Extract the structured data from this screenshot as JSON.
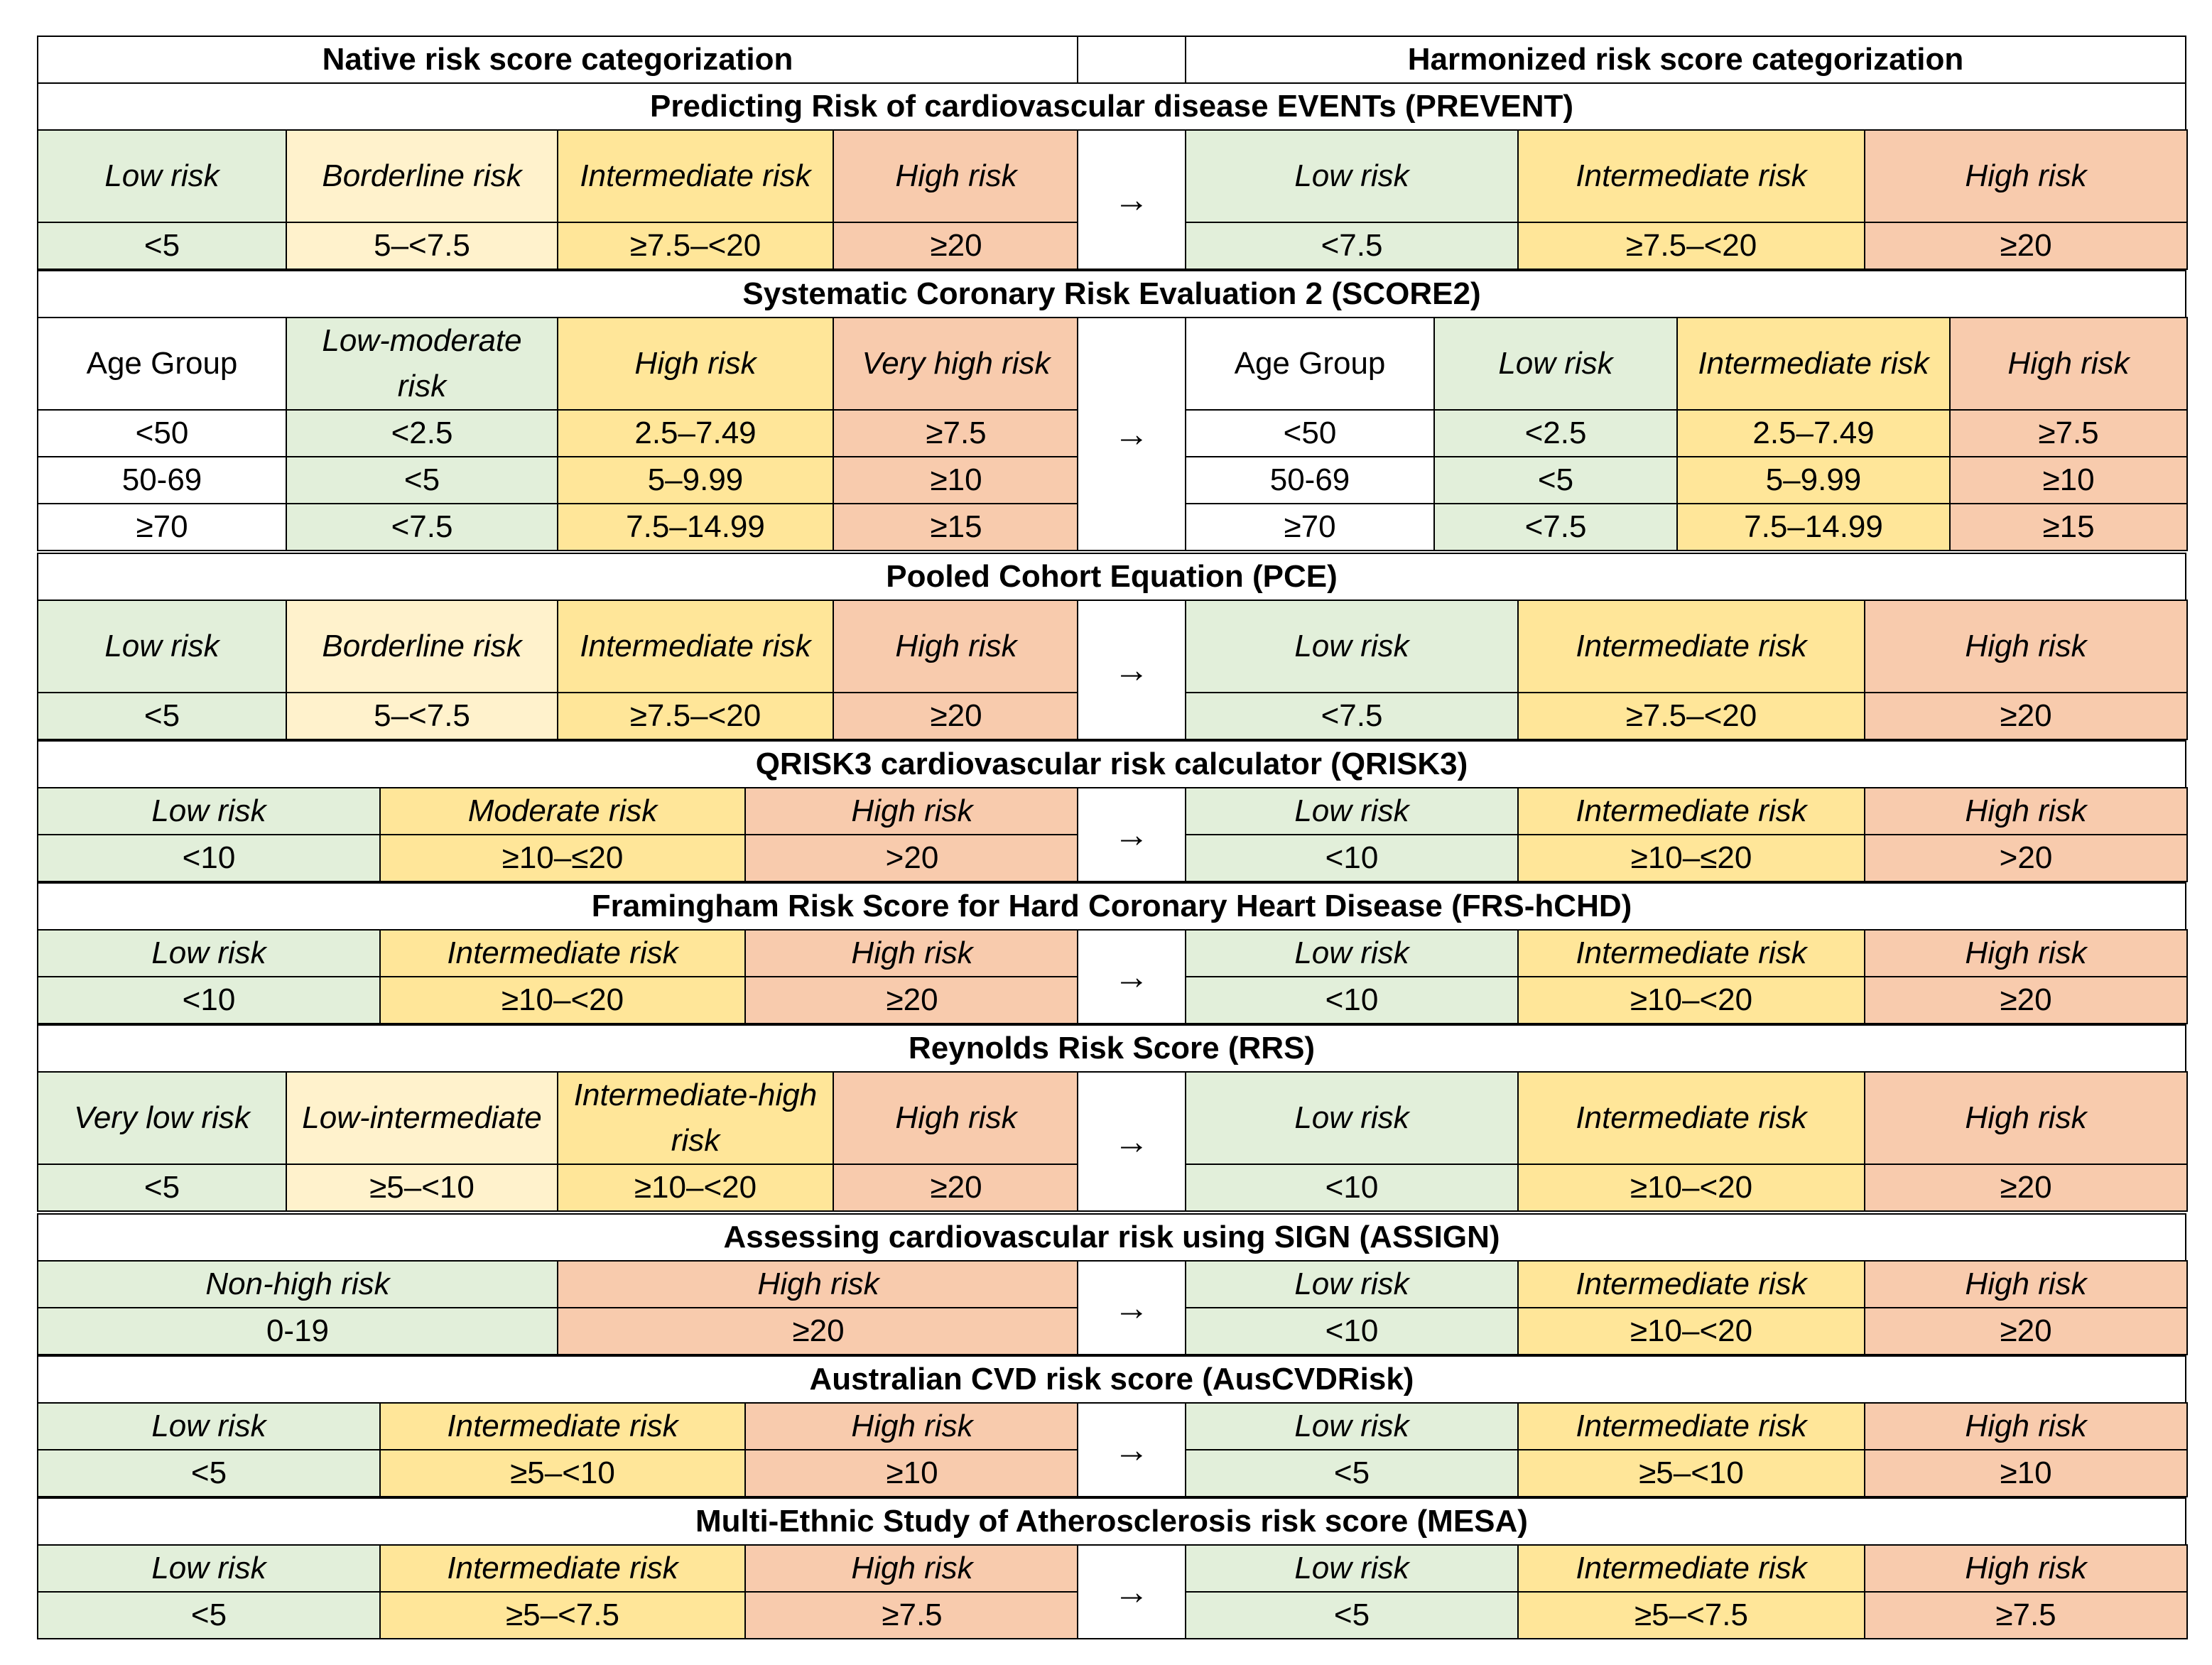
{
  "table": {
    "native_header": "Native risk score categorization",
    "harmonized_header": "Harmonized risk score categorization",
    "arrow": "→",
    "sections": [
      {
        "title": "Predicting Risk of cardiovascular disease EVENTs (PREVENT)",
        "native": {
          "labels": [
            "Low risk",
            "Borderline risk",
            "Intermediate risk",
            "High risk"
          ],
          "rows": [
            [
              "<5",
              "5–<7.5",
              "≥7.5–<20",
              "≥20"
            ]
          ]
        },
        "harmonized": {
          "labels": [
            "Low risk",
            "Intermediate risk",
            "High risk"
          ],
          "rows": [
            [
              "<7.5",
              "≥7.5–<20",
              "≥20"
            ]
          ]
        }
      },
      {
        "title": "Systematic Coronary Risk Evaluation 2 (SCORE2)",
        "native": {
          "labels": [
            "Age Group",
            "Low-moderate risk",
            "High risk",
            "Very high risk"
          ],
          "rows": [
            [
              "<50",
              "<2.5",
              "2.5–7.49",
              "≥7.5"
            ],
            [
              "50-69",
              "<5",
              "5–9.99",
              "≥10"
            ],
            [
              "≥70",
              "<7.5",
              "7.5–14.99",
              "≥15"
            ]
          ]
        },
        "harmonized": {
          "labels": [
            "Age Group",
            "Low risk",
            "Intermediate risk",
            "High risk"
          ],
          "rows": [
            [
              "<50",
              "<2.5",
              "2.5–7.49",
              "≥7.5"
            ],
            [
              "50-69",
              "<5",
              "5–9.99",
              "≥10"
            ],
            [
              "≥70",
              "<7.5",
              "7.5–14.99",
              "≥15"
            ]
          ]
        }
      },
      {
        "title": "Pooled Cohort Equation (PCE)",
        "native": {
          "labels": [
            "Low risk",
            "Borderline risk",
            "Intermediate risk",
            "High risk"
          ],
          "rows": [
            [
              "<5",
              "5–<7.5",
              "≥7.5–<20",
              "≥20"
            ]
          ]
        },
        "harmonized": {
          "labels": [
            "Low risk",
            "Intermediate risk",
            "High risk"
          ],
          "rows": [
            [
              "<7.5",
              "≥7.5–<20",
              "≥20"
            ]
          ]
        }
      },
      {
        "title": "QRISK3 cardiovascular risk calculator (QRISK3)",
        "native": {
          "labels": [
            "Low risk",
            "Moderate risk",
            "High risk"
          ],
          "rows": [
            [
              "<10",
              "≥10–≤20",
              ">20"
            ]
          ]
        },
        "harmonized": {
          "labels": [
            "Low risk",
            "Intermediate risk",
            "High risk"
          ],
          "rows": [
            [
              "<10",
              "≥10–≤20",
              ">20"
            ]
          ]
        }
      },
      {
        "title": "Framingham Risk Score for Hard Coronary Heart Disease (FRS-hCHD)",
        "native": {
          "labels": [
            "Low risk",
            "Intermediate risk",
            "High risk"
          ],
          "rows": [
            [
              "<10",
              "≥10–<20",
              "≥20"
            ]
          ]
        },
        "harmonized": {
          "labels": [
            "Low risk",
            "Intermediate risk",
            "High risk"
          ],
          "rows": [
            [
              "<10",
              "≥10–<20",
              "≥20"
            ]
          ]
        }
      },
      {
        "title": "Reynolds Risk Score (RRS)",
        "native": {
          "labels": [
            "Very low risk",
            "Low-intermediate",
            "Intermediate-high risk",
            "High risk"
          ],
          "rows": [
            [
              "<5",
              "≥5–<10",
              "≥10–<20",
              "≥20"
            ]
          ]
        },
        "harmonized": {
          "labels": [
            "Low risk",
            "Intermediate risk",
            "High risk"
          ],
          "rows": [
            [
              "<10",
              "≥10–<20",
              "≥20"
            ]
          ]
        }
      },
      {
        "title": "Assessing cardiovascular risk using SIGN (ASSIGN)",
        "native": {
          "labels": [
            "Non-high risk",
            "High risk"
          ],
          "rows": [
            [
              "0-19",
              "≥20"
            ]
          ]
        },
        "harmonized": {
          "labels": [
            "Low risk",
            "Intermediate risk",
            "High risk"
          ],
          "rows": [
            [
              "<10",
              "≥10–<20",
              "≥20"
            ]
          ]
        }
      },
      {
        "title": "Australian CVD risk score (AusCVDRisk)",
        "native": {
          "labels": [
            "Low risk",
            "Intermediate risk",
            "High risk"
          ],
          "rows": [
            [
              "<5",
              "≥5–<10",
              "≥10"
            ]
          ]
        },
        "harmonized": {
          "labels": [
            "Low risk",
            "Intermediate risk",
            "High risk"
          ],
          "rows": [
            [
              "<5",
              "≥5–<10",
              "≥10"
            ]
          ]
        }
      },
      {
        "title": "Multi-Ethnic Study of Atherosclerosis risk score (MESA)",
        "native": {
          "labels": [
            "Low risk",
            "Intermediate risk",
            "High risk"
          ],
          "rows": [
            [
              "<5",
              "≥5–<7.5",
              "≥7.5"
            ]
          ]
        },
        "harmonized": {
          "labels": [
            "Low risk",
            "Intermediate risk",
            "High risk"
          ],
          "rows": [
            [
              "<5",
              "≥5–<7.5",
              "≥7.5"
            ]
          ]
        }
      }
    ]
  }
}
